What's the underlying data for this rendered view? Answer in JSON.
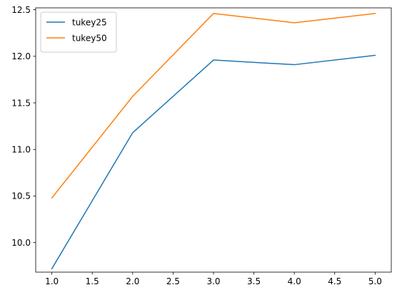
{
  "chart_data": {
    "type": "line",
    "x": [
      1.0,
      2.0,
      3.0,
      4.0,
      5.0
    ],
    "series": [
      {
        "name": "tukey25",
        "color": "#1f77b4",
        "values": [
          9.72,
          11.18,
          11.96,
          11.91,
          12.01
        ]
      },
      {
        "name": "tukey50",
        "color": "#ff7f0e",
        "values": [
          10.48,
          11.57,
          12.46,
          12.36,
          12.46
        ]
      }
    ],
    "xlim": [
      0.8,
      5.2
    ],
    "ylim": [
      9.683,
      12.52
    ],
    "xticks": [
      "1.0",
      "1.5",
      "2.0",
      "2.5",
      "3.0",
      "3.5",
      "4.0",
      "4.5",
      "5.0"
    ],
    "yticks": [
      "10.0",
      "10.5",
      "11.0",
      "11.5",
      "12.0",
      "12.5"
    ],
    "title": "",
    "xlabel": "",
    "ylabel": "",
    "grid": false,
    "legend_position": "top-left"
  }
}
